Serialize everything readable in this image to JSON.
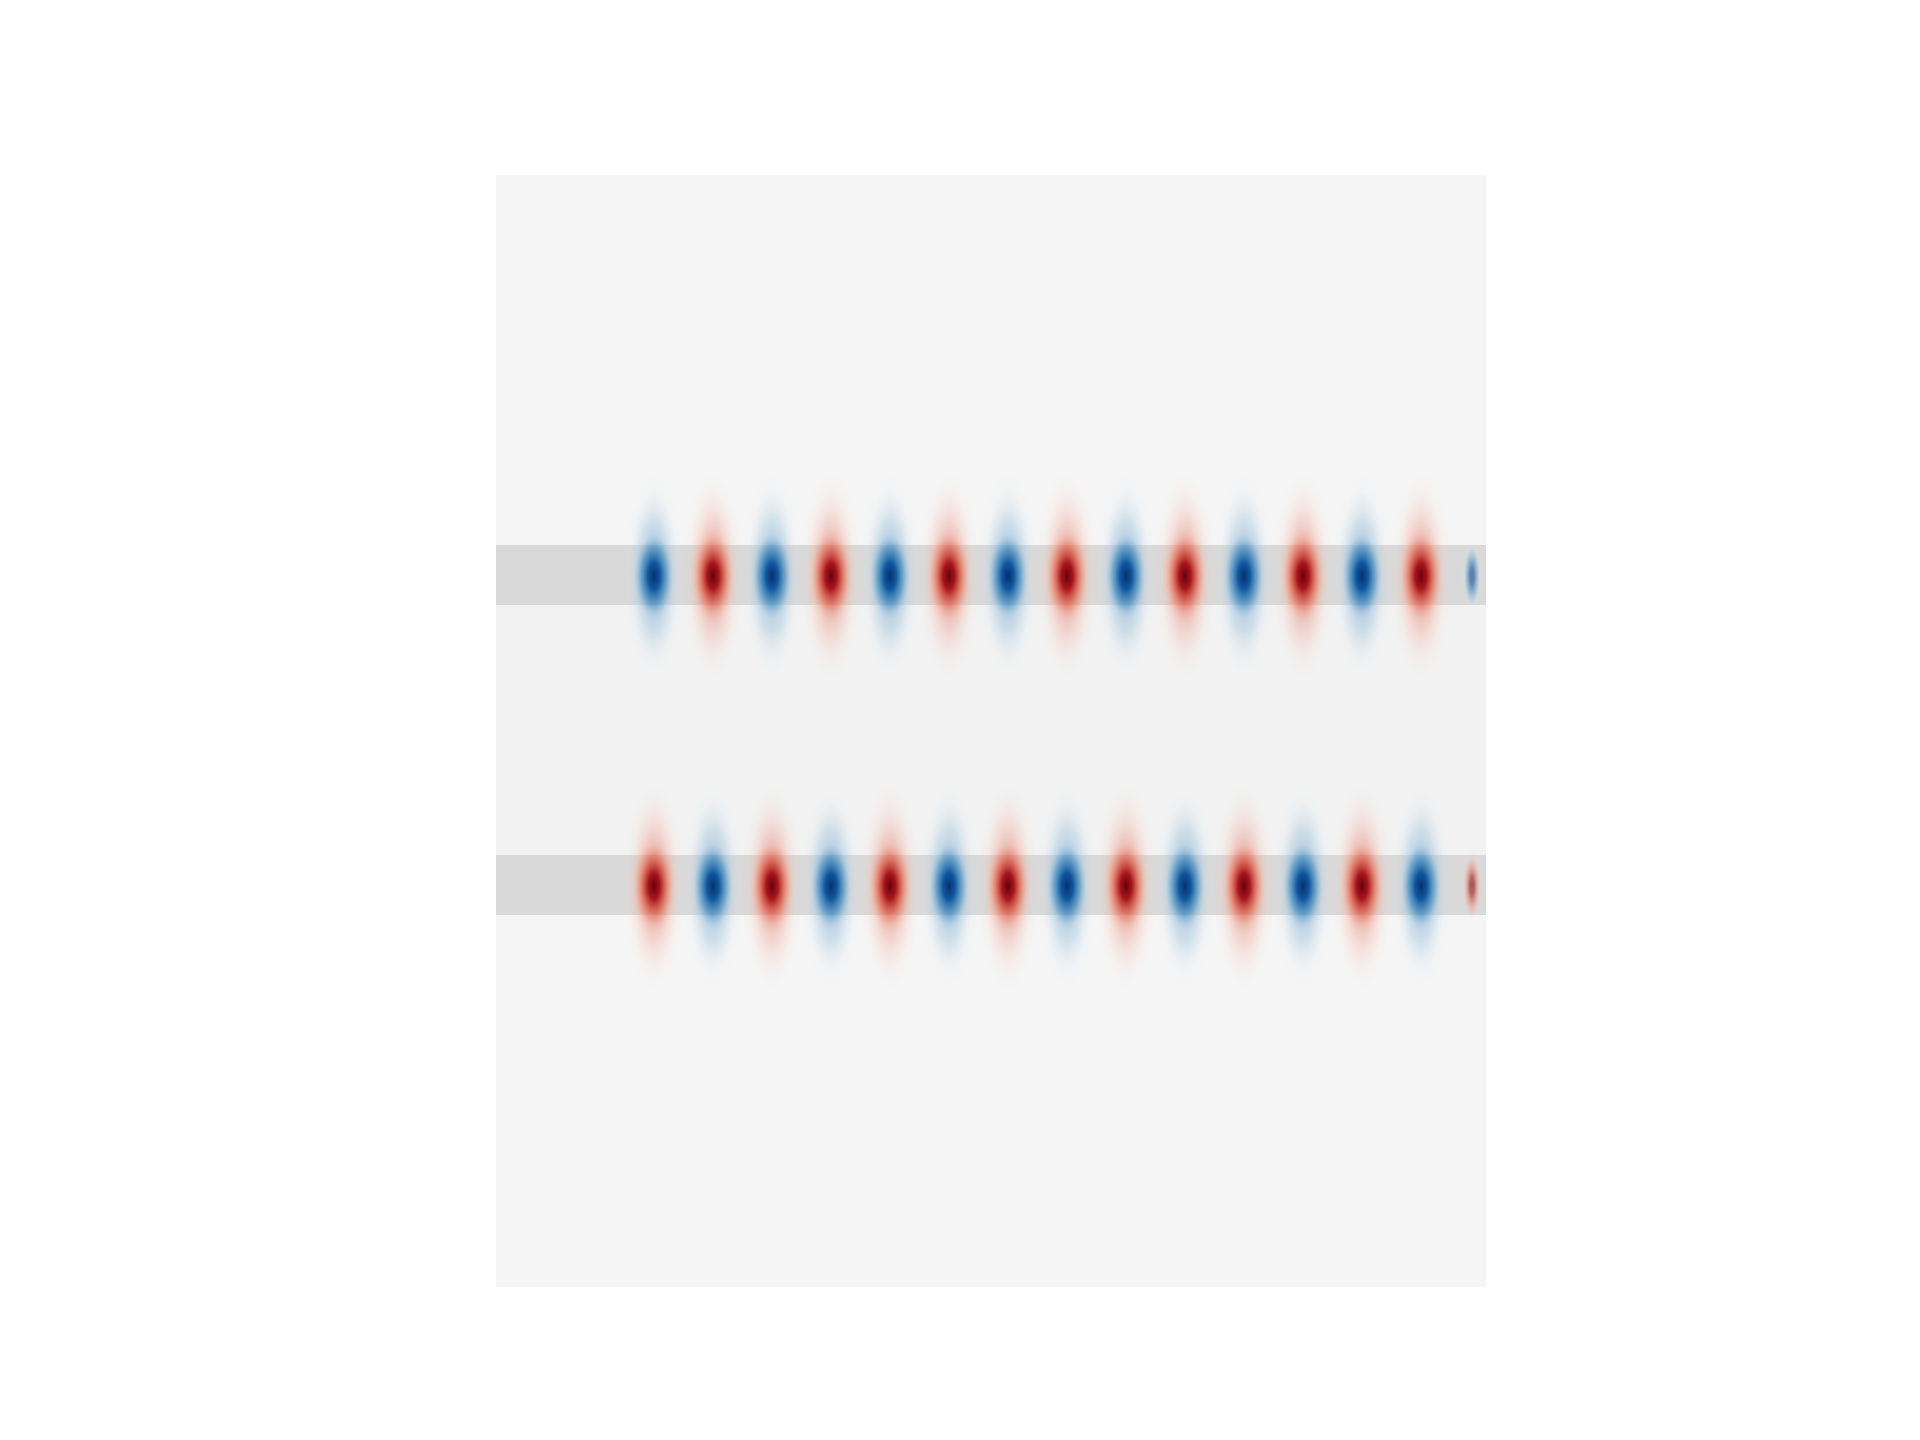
{
  "figure": {
    "background_color": "#ffffff",
    "domain_color": "#f5f5f5",
    "gap_color": "#f2f2f2",
    "waveguide_color": "#d9d9d9",
    "positive_color": "#8b0a1e",
    "negative_color": "#0b4a86",
    "waveguides": [
      {
        "name": "upper-waveguide",
        "lobe_count": 14,
        "first_lobe_sign": -1
      },
      {
        "name": "lower-waveguide",
        "lobe_count": 14,
        "first_lobe_sign": 1
      }
    ]
  }
}
